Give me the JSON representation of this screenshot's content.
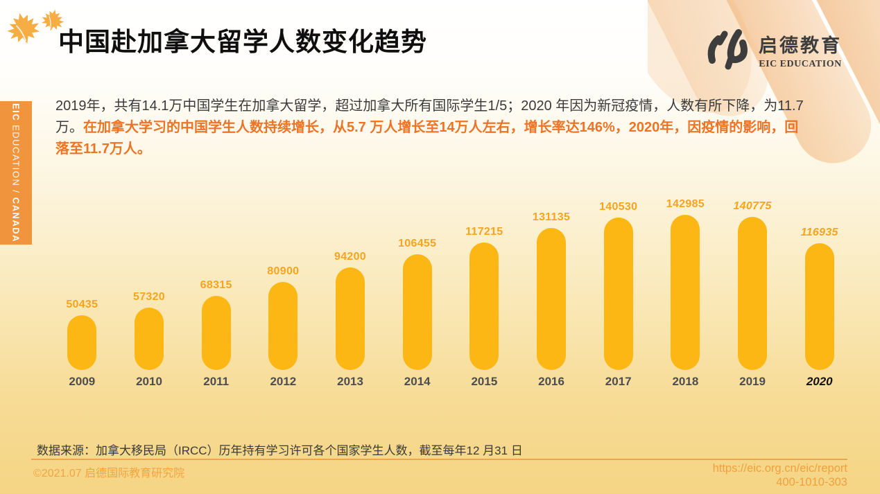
{
  "header": {
    "title": "中国赴加拿大留学人数变化趋势",
    "logo": {
      "cn": "启德教育",
      "en": "EIC EDUCATION"
    }
  },
  "sidebar": {
    "part_bold_1": "EIC",
    "part_thin": " EDUCATION / ",
    "part_bold_2": "CANADA"
  },
  "intro": {
    "black_text": "2019年，共有14.1万中国学生在加拿大留学，超过加拿大所有国际学生1/5；2020 年因为新冠疫情，人数有所下降，为11.7 万。",
    "orange_text": "在加拿大学习的中国学生人数持续增长，从5.7 万人增长至14万人左右，增长率达146%，2020年，因疫情的影响，回落至11.7万人。"
  },
  "chart_data": {
    "type": "bar",
    "categories": [
      "2009",
      "2010",
      "2011",
      "2012",
      "2013",
      "2014",
      "2015",
      "2016",
      "2017",
      "2018",
      "2019",
      "2020"
    ],
    "values": [
      50435,
      57320,
      68315,
      80900,
      94200,
      106455,
      117215,
      131135,
      140530,
      142985,
      140775,
      116935
    ],
    "title": "",
    "xlabel": "",
    "ylabel": "",
    "ylim": [
      0,
      142985
    ],
    "grid": false,
    "legend": false,
    "data_labels_shown": true,
    "italic_value_label_years": [
      "2019",
      "2020"
    ],
    "italic_axis_label_years": [
      "2020"
    ],
    "bar_color": "#fdb714",
    "value_label_color": "#f7a41e",
    "axis_label_color": "#4d4d4d"
  },
  "source_note": "数据来源：加拿大移民局（IRCC）历年持有学习许可各个国家学生人数，截至每年12 月31 日",
  "footer": {
    "copyright": "©2021.07 启德国际教育研究院",
    "url": "https://eic.org.cn/eic/report",
    "phone": "400-1010-303"
  },
  "colors": {
    "accent_orange": "#ed7425",
    "sidebar_orange": "#f0953e",
    "footer_orange": "#f2a43f",
    "leaf_orange": "#f6ad44"
  }
}
